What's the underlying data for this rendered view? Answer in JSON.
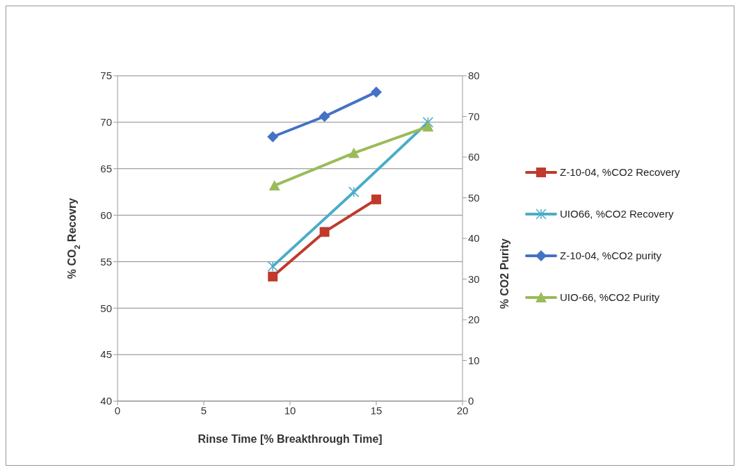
{
  "chart_data": {
    "type": "line",
    "xlabel": "Rinse Time [% Breakthrough Time]",
    "ylabel": "% CO$_{2}$ Recovry",
    "y2label": "% CO2 Purity",
    "xlim": [
      0,
      20
    ],
    "xticks": [
      0,
      5,
      10,
      15,
      20
    ],
    "ylim": [
      40,
      75
    ],
    "yticks": [
      40,
      45,
      50,
      55,
      60,
      65,
      70,
      75
    ],
    "y2lim": [
      0,
      80
    ],
    "y2ticks": [
      0,
      10,
      20,
      30,
      40,
      50,
      60,
      70,
      80
    ],
    "grid": "y",
    "legend": "right",
    "series": [
      {
        "name": "Z-10-04, %CO2 Recovery",
        "color": "#c0392b",
        "marker": "square",
        "x": [
          9,
          12,
          15
        ],
        "values": [
          53.4,
          58.2,
          61.7
        ]
      },
      {
        "name": "UIO66, %CO2 Recovery",
        "color": "#4bacc6",
        "marker": "cross",
        "x": [
          9,
          13.7,
          18
        ],
        "values": [
          54.5,
          62.5,
          70
        ]
      },
      {
        "name": "Z-10-04, %CO2 purity",
        "color": "#4472c4",
        "marker": "diamond",
        "axis": "y2",
        "x": [
          9,
          12,
          15
        ],
        "values": [
          65,
          70,
          76
        ]
      },
      {
        "name": "UIO-66, %CO2 Purity",
        "color": "#9bbb59",
        "marker": "triangle",
        "axis": "y2",
        "x": [
          9.1,
          13.7,
          18
        ],
        "values": [
          53,
          61,
          67.5
        ]
      }
    ]
  }
}
